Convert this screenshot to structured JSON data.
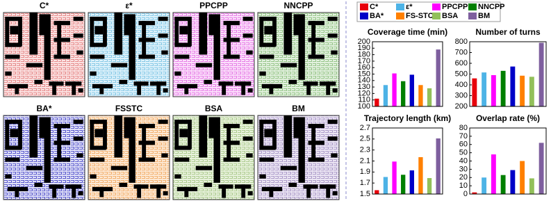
{
  "map_panels": {
    "titles": [
      "C*",
      "ε*",
      "PPCPP",
      "NNCPP",
      "BA*",
      "FSSTC",
      "BSA",
      "BM"
    ]
  },
  "chart_data": [
    {
      "type": "bar",
      "title": "Coverage time (min)",
      "ylim": [
        100,
        200
      ],
      "yticks": [
        100,
        110,
        120,
        130,
        140,
        150,
        160,
        170,
        180,
        190,
        200
      ],
      "series": [
        {
          "name": "C*",
          "color": "#e8000b",
          "values": [
            112
          ]
        },
        {
          "name": "ε*",
          "color": "#4db3e6",
          "values": [
            133
          ]
        },
        {
          "name": "PPCPP",
          "color": "#ff00ff",
          "values": [
            151
          ]
        },
        {
          "name": "NNCPP",
          "color": "#007f00",
          "values": [
            139
          ]
        },
        {
          "name": "BA*",
          "color": "#0000c8",
          "values": [
            149
          ]
        },
        {
          "name": "FS-STC",
          "color": "#ff8000",
          "values": [
            133
          ]
        },
        {
          "name": "BSA",
          "color": "#92c05a",
          "values": [
            128
          ]
        },
        {
          "name": "BM",
          "color": "#7e5f9e",
          "values": [
            188
          ]
        }
      ]
    },
    {
      "type": "bar",
      "title": "Number of turns",
      "ylim": [
        200,
        800
      ],
      "yticks": [
        200,
        300,
        400,
        500,
        600,
        700,
        800
      ],
      "series": [
        {
          "name": "C*",
          "color": "#e8000b",
          "values": [
            460
          ]
        },
        {
          "name": "ε*",
          "color": "#4db3e6",
          "values": [
            515
          ]
        },
        {
          "name": "PPCPP",
          "color": "#ff00ff",
          "values": [
            490
          ]
        },
        {
          "name": "NNCPP",
          "color": "#007f00",
          "values": [
            530
          ]
        },
        {
          "name": "BA*",
          "color": "#0000c8",
          "values": [
            570
          ]
        },
        {
          "name": "FS-STC",
          "color": "#ff8000",
          "values": [
            485
          ]
        },
        {
          "name": "BSA",
          "color": "#92c05a",
          "values": [
            475
          ]
        },
        {
          "name": "BM",
          "color": "#7e5f9e",
          "values": [
            790
          ]
        }
      ]
    },
    {
      "type": "bar",
      "title": "Trajectory length (km)",
      "ylim": [
        1.5,
        2.7
      ],
      "yticks": [
        1.5,
        1.7,
        1.9,
        2.1,
        2.3,
        2.5,
        2.7
      ],
      "series": [
        {
          "name": "C*",
          "color": "#e8000b",
          "values": [
            1.57
          ]
        },
        {
          "name": "ε*",
          "color": "#4db3e6",
          "values": [
            1.81
          ]
        },
        {
          "name": "PPCPP",
          "color": "#ff00ff",
          "values": [
            2.09
          ]
        },
        {
          "name": "NNCPP",
          "color": "#007f00",
          "values": [
            1.85
          ]
        },
        {
          "name": "BA*",
          "color": "#0000c8",
          "values": [
            1.93
          ]
        },
        {
          "name": "FS-STC",
          "color": "#ff8000",
          "values": [
            2.17
          ]
        },
        {
          "name": "BSA",
          "color": "#92c05a",
          "values": [
            1.79
          ]
        },
        {
          "name": "BM",
          "color": "#7e5f9e",
          "values": [
            2.51
          ]
        }
      ]
    },
    {
      "type": "bar",
      "title": "Overlap rate (%)",
      "ylim": [
        0,
        80
      ],
      "yticks": [
        0,
        10,
        20,
        30,
        40,
        50,
        60,
        70,
        80
      ],
      "series": [
        {
          "name": "C*",
          "color": "#e8000b",
          "values": [
            2
          ]
        },
        {
          "name": "ε*",
          "color": "#4db3e6",
          "values": [
            20
          ]
        },
        {
          "name": "PPCPP",
          "color": "#ff00ff",
          "values": [
            48
          ]
        },
        {
          "name": "NNCPP",
          "color": "#007f00",
          "values": [
            23
          ]
        },
        {
          "name": "BA*",
          "color": "#0000c8",
          "values": [
            29
          ]
        },
        {
          "name": "FS-STC",
          "color": "#ff8000",
          "values": [
            40
          ]
        },
        {
          "name": "BSA",
          "color": "#92c05a",
          "values": [
            19
          ]
        },
        {
          "name": "BM",
          "color": "#7e5f9e",
          "values": [
            62
          ]
        }
      ]
    }
  ]
}
